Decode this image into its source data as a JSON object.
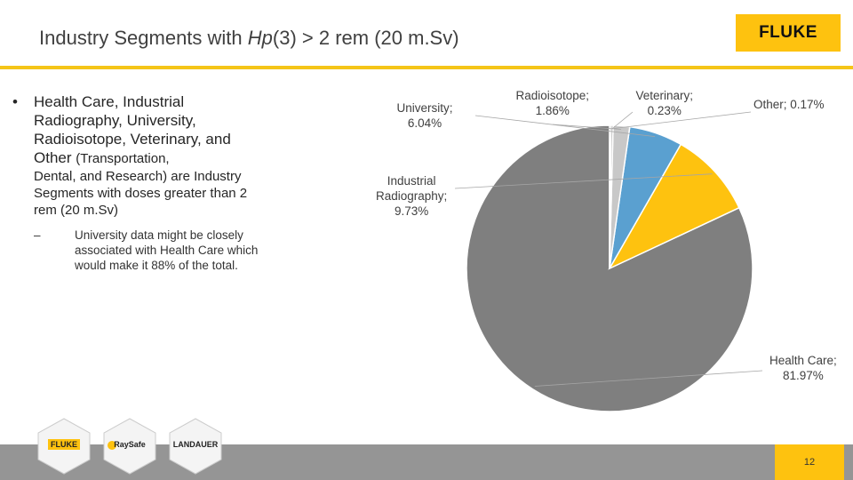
{
  "header": {
    "title_pre": "Industry Segments with ",
    "title_ital": "Hp",
    "title_post": "(3) > 2 rem (20 m.Sv)",
    "logo_text": "FLUKE"
  },
  "content": {
    "bullet_line1": "Health Care, Industrial Radiography, University, Radioisotope, Veterinary, and Other ",
    "bullet_line1_small": "(Transportation,",
    "bullet_line2": "Dental, and Research) are Industry Segments with doses greater than 2 rem (20 m.Sv)",
    "sub_bullet": "University data might be closely associated with Health Care which would make it 88% of the total."
  },
  "chart_data": {
    "type": "pie",
    "categories": [
      "Health Care",
      "Industrial Radiography",
      "University",
      "Radioisotope",
      "Veterinary",
      "Other"
    ],
    "values": [
      81.97,
      9.73,
      6.04,
      1.86,
      0.23,
      0.17
    ],
    "labels": [
      "Health Care; 81.97%",
      "Industrial Radiography; 9.73%",
      "University; 6.04%",
      "Radioisotope; 1.86%",
      "Veterinary; 0.23%",
      "Other; 0.17%"
    ],
    "label_lines": [
      [
        "Health Care;",
        "81.97%"
      ],
      [
        "Industrial",
        "Radiography;",
        "9.73%"
      ],
      [
        "University;",
        "6.04%"
      ],
      [
        "Radioisotope;",
        "1.86%"
      ],
      [
        "Veterinary;",
        "0.23%"
      ],
      [
        "Other; 0.17%"
      ]
    ],
    "colors": [
      "#7f7f7f",
      "#fec20f",
      "#5aa0d0",
      "#c8c8c8",
      "#9e9e9e",
      "#6f6f6f"
    ],
    "start_angle_deg": 0,
    "direction": "counterclockwise"
  },
  "partners": [
    "FLUKE",
    "RaySafe",
    "LANDAUER"
  ],
  "footer": {
    "page_number": "12"
  }
}
